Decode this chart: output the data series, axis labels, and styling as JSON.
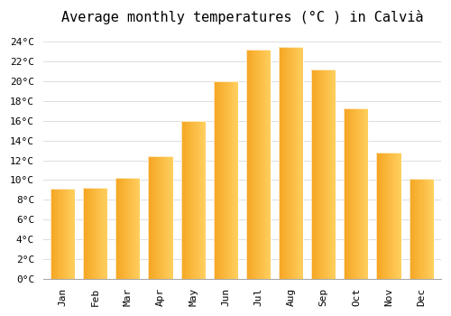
{
  "title": "Average monthly temperatures (°C ) in Calvià",
  "months": [
    "Jan",
    "Feb",
    "Mar",
    "Apr",
    "May",
    "Jun",
    "Jul",
    "Aug",
    "Sep",
    "Oct",
    "Nov",
    "Dec"
  ],
  "values": [
    9.1,
    9.2,
    10.2,
    12.4,
    16.0,
    20.0,
    23.2,
    23.5,
    21.2,
    17.3,
    12.8,
    10.1
  ],
  "bar_color_left": "#F5A623",
  "bar_color_right": "#FFD060",
  "background_color": "#FFFFFF",
  "plot_bg_color": "#FFFFFF",
  "ylim": [
    0,
    25
  ],
  "yticks": [
    0,
    2,
    4,
    6,
    8,
    10,
    12,
    14,
    16,
    18,
    20,
    22,
    24
  ],
  "grid_color": "#DDDDDD",
  "title_fontsize": 11,
  "tick_fontsize": 8,
  "bar_width": 0.75
}
